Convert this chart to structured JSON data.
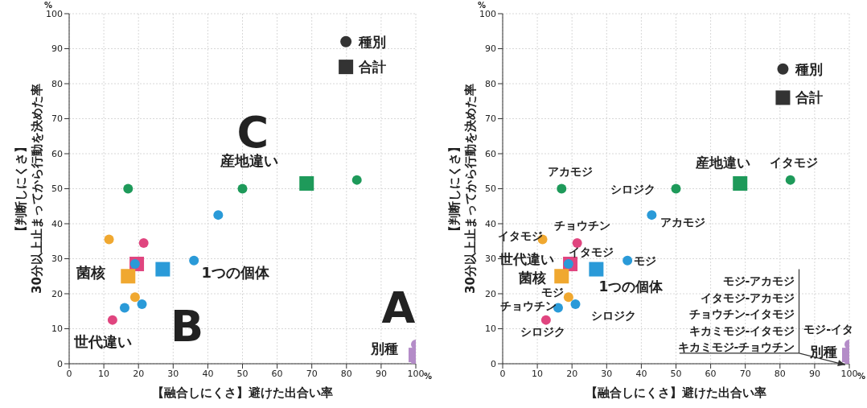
{
  "chart_data": [
    {
      "type": "scatter",
      "xlabel": "【融合しにくさ】避けた出合い率",
      "ylabel": "【判断しにくさ】\n30分以上止まってから行動を決めた率",
      "xlim": [
        0,
        100
      ],
      "ylim": [
        0,
        100
      ],
      "xticks": [
        0,
        10,
        20,
        30,
        40,
        50,
        60,
        70,
        80,
        90,
        100
      ],
      "yticks": [
        0,
        10,
        20,
        30,
        40,
        50,
        60,
        70,
        80,
        90,
        100
      ],
      "grid": true,
      "series": [
        {
          "color": "#1e9a5a",
          "marker": "square",
          "x": [
            68.5
          ],
          "values": [
            51.5
          ]
        },
        {
          "color": "#2a9ad8",
          "marker": "square",
          "x": [
            27
          ],
          "values": [
            27
          ]
        },
        {
          "color": "#e0457f",
          "marker": "square",
          "x": [
            19.5
          ],
          "values": [
            28.5
          ]
        },
        {
          "color": "#f0a830",
          "marker": "square",
          "x": [
            17
          ],
          "values": [
            25
          ]
        },
        {
          "color": "#b48cc8",
          "marker": "square",
          "x": [
            100
          ],
          "values": [
            2.5
          ]
        },
        {
          "color": "#1e9a5a",
          "marker": "circle",
          "x": [
            17,
            50,
            83
          ],
          "values": [
            50,
            50,
            52.5
          ]
        },
        {
          "color": "#2a9ad8",
          "marker": "circle",
          "x": [
            43,
            36,
            19,
            16,
            21
          ],
          "values": [
            42.5,
            29.5,
            28.5,
            16,
            17
          ]
        },
        {
          "color": "#e0457f",
          "marker": "circle",
          "x": [
            21.5,
            12.5
          ],
          "values": [
            34.5,
            12.5
          ]
        },
        {
          "color": "#f0a830",
          "marker": "circle",
          "x": [
            11.5,
            19
          ],
          "values": [
            35.5,
            19
          ]
        },
        {
          "color": "#b48cc8",
          "marker": "circle",
          "x": [
            100,
            100
          ],
          "values": [
            5.5,
            0
          ]
        }
      ],
      "annotations": [
        "%",
        "%",
        "C",
        "産地違い",
        "1つの個体",
        "菌核",
        "世代違い",
        "B",
        "A",
        "別種",
        "種別",
        "合計"
      ]
    },
    {
      "type": "scatter",
      "xlabel": "【融合しにくさ】避けた出合い率",
      "ylabel": "【判断しにくさ】\n30分以上止まってから行動を決めた率",
      "xlim": [
        0,
        100
      ],
      "ylim": [
        0,
        100
      ],
      "xticks": [
        0,
        10,
        20,
        30,
        40,
        50,
        60,
        70,
        80,
        90,
        100
      ],
      "yticks": [
        0,
        10,
        20,
        30,
        40,
        50,
        60,
        70,
        80,
        90,
        100
      ],
      "grid": true,
      "series": [
        {
          "color": "#1e9a5a",
          "marker": "square",
          "x": [
            68.5
          ],
          "values": [
            51.5
          ]
        },
        {
          "color": "#2a9ad8",
          "marker": "square",
          "x": [
            27
          ],
          "values": [
            27
          ]
        },
        {
          "color": "#e0457f",
          "marker": "square",
          "x": [
            19.5
          ],
          "values": [
            28.5
          ]
        },
        {
          "color": "#f0a830",
          "marker": "square",
          "x": [
            17
          ],
          "values": [
            25
          ]
        },
        {
          "color": "#b48cc8",
          "marker": "square",
          "x": [
            100
          ],
          "values": [
            2.5
          ]
        },
        {
          "color": "#1e9a5a",
          "marker": "circle",
          "x": [
            17,
            50,
            83
          ],
          "values": [
            50,
            50,
            52.5
          ]
        },
        {
          "color": "#2a9ad8",
          "marker": "circle",
          "x": [
            43,
            36,
            19,
            16,
            21
          ],
          "values": [
            42.5,
            29.5,
            28.5,
            16,
            17
          ]
        },
        {
          "color": "#e0457f",
          "marker": "circle",
          "x": [
            21.5,
            12.5
          ],
          "values": [
            34.5,
            12.5
          ]
        },
        {
          "color": "#f0a830",
          "marker": "circle",
          "x": [
            11.5,
            19
          ],
          "values": [
            35.5,
            19
          ]
        },
        {
          "color": "#b48cc8",
          "marker": "circle",
          "x": [
            100,
            100
          ],
          "values": [
            5.5,
            0
          ]
        }
      ],
      "annotations": [
        "%",
        "%",
        "産地違い",
        "イタモジ",
        "アカモジ",
        "シロジク",
        "アカモジ",
        "イタモジ",
        "チョウチン",
        "世代違い",
        "イタモジ",
        "モジ",
        "菌核",
        "1つの個体",
        "モジ",
        "チョウチン",
        "シロジク",
        "シロジク",
        "モジ-アカモジ",
        "イタモジ-アカモジ",
        "チョウチン-イタモジ",
        "キカミモジ-イタモジ",
        "キカミモジ-チョウチン",
        "モジ-イタ",
        "別種",
        "種別",
        "合計"
      ]
    }
  ]
}
